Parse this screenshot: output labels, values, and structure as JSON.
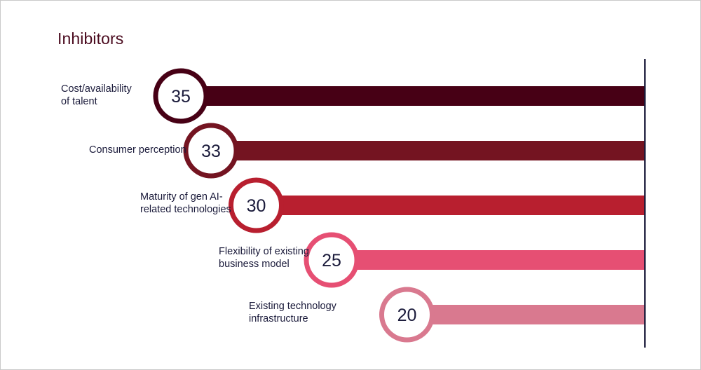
{
  "title": "Inhibitors",
  "chart_data": {
    "type": "bar",
    "orientation": "horizontal",
    "categories": [
      "Cost/availability\nof talent",
      "Consumer perception",
      "Maturity of gen AI-\nrelated technologies",
      "Flexibility of existing\nbusiness model",
      "Existing technology\ninfrastructure"
    ],
    "values": [
      35,
      33,
      30,
      25,
      20
    ],
    "colors": [
      "#470015",
      "#741421",
      "#b81f2f",
      "#e64f73",
      "#d9798f"
    ],
    "axis_line_color": "#1a1a3a",
    "title": "Inhibitors"
  }
}
